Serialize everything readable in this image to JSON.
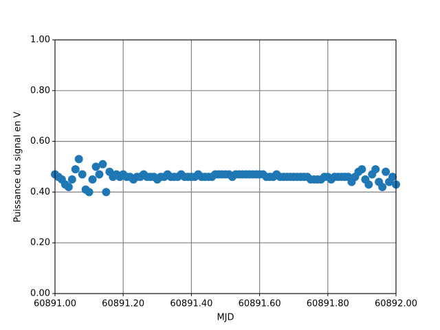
{
  "chart_data": {
    "type": "scatter",
    "xlabel": "MJD",
    "ylabel": "Puissance du signal en V",
    "color": "#1f77b4",
    "grid": true,
    "xlim": [
      60891.0,
      60892.0
    ],
    "xticks": [
      {
        "value": 60891.0,
        "label": "60891.00"
      },
      {
        "value": 60891.2,
        "label": "60891.20"
      },
      {
        "value": 60891.4,
        "label": "60891.40"
      },
      {
        "value": 60891.6,
        "label": "60891.60"
      },
      {
        "value": 60891.8,
        "label": "60891.80"
      },
      {
        "value": 60892.0,
        "label": "60892.00"
      }
    ],
    "ylim": [
      0,
      1
    ],
    "yticks": [
      {
        "value": 0,
        "label": "0.00"
      },
      {
        "value": 0.2,
        "label": "0.20"
      },
      {
        "value": 0.4,
        "label": "0.40"
      },
      {
        "value": 0.6,
        "label": "0.60"
      },
      {
        "value": 0.8,
        "label": "0.80"
      },
      {
        "value": 1,
        "label": "1.00"
      }
    ],
    "x": [
      60891.0,
      60891.01,
      60891.02,
      60891.03,
      60891.04,
      60891.05,
      60891.06,
      60891.07,
      60891.08,
      60891.09,
      60891.1,
      60891.11,
      60891.12,
      60891.13,
      60891.14,
      60891.15,
      60891.16,
      60891.17,
      60891.18,
      60891.19,
      60891.2,
      60891.21,
      60891.22,
      60891.23,
      60891.24,
      60891.25,
      60891.26,
      60891.27,
      60891.28,
      60891.29,
      60891.3,
      60891.31,
      60891.32,
      60891.33,
      60891.34,
      60891.35,
      60891.36,
      60891.37,
      60891.38,
      60891.39,
      60891.4,
      60891.41,
      60891.42,
      60891.43,
      60891.44,
      60891.45,
      60891.46,
      60891.47,
      60891.48,
      60891.49,
      60891.5,
      60891.51,
      60891.52,
      60891.53,
      60891.54,
      60891.55,
      60891.56,
      60891.57,
      60891.58,
      60891.59,
      60891.6,
      60891.61,
      60891.62,
      60891.63,
      60891.64,
      60891.65,
      60891.66,
      60891.67,
      60891.68,
      60891.69,
      60891.7,
      60891.71,
      60891.72,
      60891.73,
      60891.74,
      60891.75,
      60891.76,
      60891.77,
      60891.78,
      60891.79,
      60891.8,
      60891.81,
      60891.82,
      60891.83,
      60891.84,
      60891.85,
      60891.86,
      60891.87,
      60891.88,
      60891.89,
      60891.9,
      60891.91,
      60891.92,
      60891.93,
      60891.94,
      60891.95,
      60891.96,
      60891.97,
      60891.98,
      60891.99,
      60892.0
    ],
    "values": [
      0.47,
      0.46,
      0.45,
      0.43,
      0.42,
      0.45,
      0.49,
      0.53,
      0.47,
      0.41,
      0.4,
      0.45,
      0.5,
      0.47,
      0.51,
      0.4,
      0.48,
      0.46,
      0.47,
      0.46,
      0.47,
      0.46,
      0.46,
      0.45,
      0.46,
      0.46,
      0.47,
      0.46,
      0.46,
      0.46,
      0.45,
      0.46,
      0.46,
      0.47,
      0.46,
      0.46,
      0.46,
      0.47,
      0.46,
      0.46,
      0.46,
      0.46,
      0.47,
      0.46,
      0.46,
      0.46,
      0.46,
      0.47,
      0.47,
      0.47,
      0.47,
      0.47,
      0.46,
      0.47,
      0.47,
      0.47,
      0.47,
      0.47,
      0.47,
      0.47,
      0.47,
      0.47,
      0.46,
      0.46,
      0.46,
      0.47,
      0.46,
      0.46,
      0.46,
      0.46,
      0.46,
      0.46,
      0.46,
      0.46,
      0.46,
      0.45,
      0.45,
      0.45,
      0.45,
      0.46,
      0.46,
      0.45,
      0.46,
      0.46,
      0.46,
      0.46,
      0.46,
      0.44,
      0.46,
      0.48,
      0.49,
      0.45,
      0.43,
      0.47,
      0.49,
      0.44,
      0.42,
      0.48,
      0.44,
      0.46,
      0.43
    ]
  }
}
